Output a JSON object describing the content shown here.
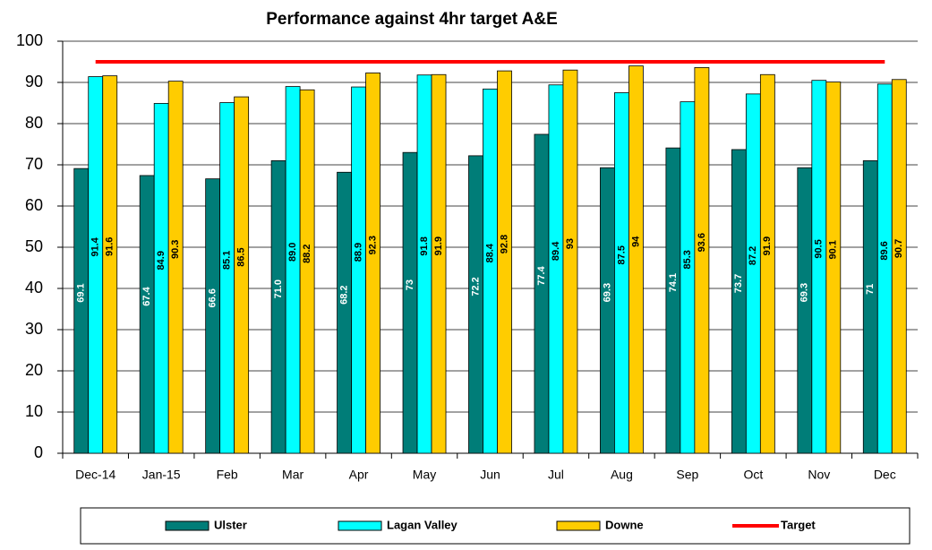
{
  "chart_data": {
    "type": "bar",
    "title": "Performance against 4hr target A&E",
    "categories": [
      "Dec-14",
      "Jan-15",
      "Feb",
      "Mar",
      "Apr",
      "May",
      "Jun",
      "Jul",
      "Aug",
      "Sep",
      "Oct",
      "Nov",
      "Dec"
    ],
    "series": [
      {
        "name": "Ulster",
        "color": "#007d78",
        "label_color": "#ffffff",
        "values": [
          69.1,
          67.4,
          66.6,
          71.0,
          68.2,
          73,
          72.2,
          77.4,
          69.3,
          74.1,
          73.7,
          69.3,
          71
        ],
        "value_labels": [
          "69.1",
          "67.4",
          "66.6",
          "71.0",
          "68.2",
          "73",
          "72.2",
          "77.4",
          "69.3",
          "74.1",
          "73.7",
          "69.3",
          "71"
        ]
      },
      {
        "name": "Lagan Valley",
        "color": "#00ffff",
        "label_color": "#000000",
        "values": [
          91.4,
          84.9,
          85.1,
          89.0,
          88.9,
          91.8,
          88.4,
          89.4,
          87.5,
          85.3,
          87.2,
          90.5,
          89.6
        ],
        "value_labels": [
          "91.4",
          "84.9",
          "85.1",
          "89.0",
          "88.9",
          "91.8",
          "88.4",
          "89.4",
          "87.5",
          "85.3",
          "87.2",
          "90.5",
          "89.6"
        ]
      },
      {
        "name": "Downe",
        "color": "#ffcc00",
        "label_color": "#000000",
        "values": [
          91.6,
          90.3,
          86.5,
          88.2,
          92.3,
          91.9,
          92.8,
          93,
          94,
          93.6,
          91.9,
          90.1,
          90.7
        ],
        "value_labels": [
          "91.6",
          "90.3",
          "86.5",
          "88.2",
          "92.3",
          "91.9",
          "92.8",
          "93",
          "94",
          "93.6",
          "91.9",
          "90.1",
          "90.7"
        ]
      },
      {
        "name": "Target",
        "type": "line",
        "color": "#ff0000",
        "values": [
          95,
          95,
          95,
          95,
          95,
          95,
          95,
          95,
          95,
          95,
          95,
          95,
          95
        ]
      }
    ],
    "ylim": [
      0,
      100
    ],
    "yticks": [
      0,
      10,
      20,
      30,
      40,
      50,
      60,
      70,
      80,
      90,
      100
    ],
    "grid": true,
    "legend": "bottom"
  }
}
